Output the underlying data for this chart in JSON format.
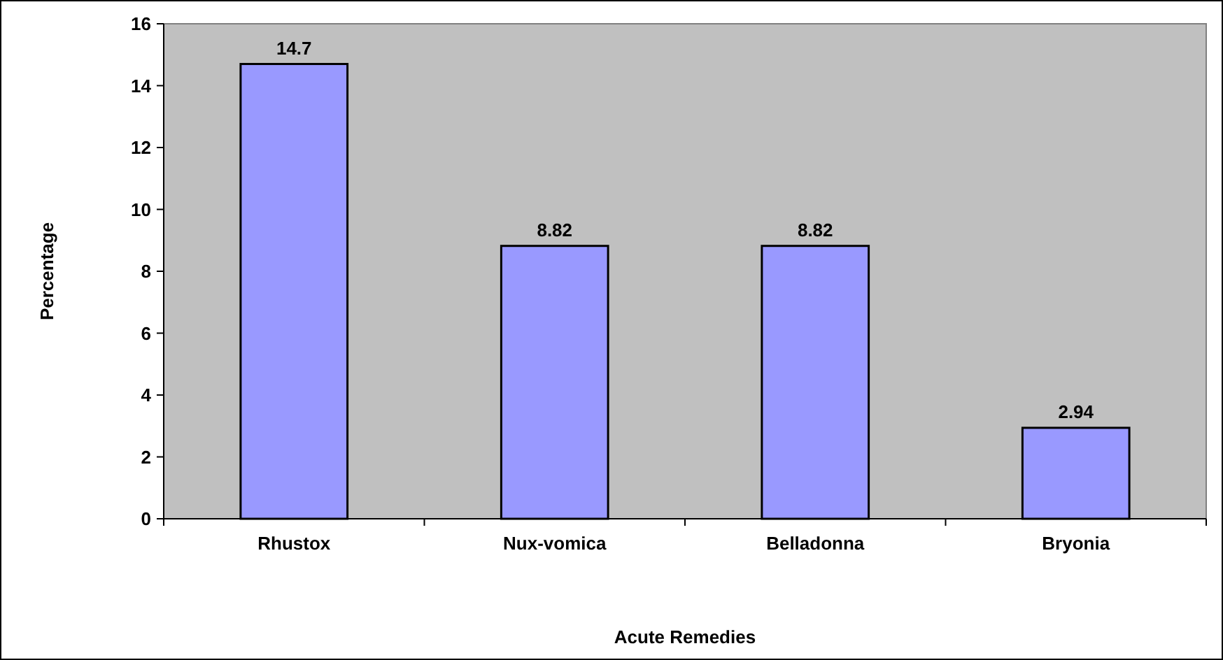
{
  "chart_data": {
    "type": "bar",
    "xlabel": "Acute Remedies",
    "ylabel": "Percentage",
    "categories": [
      "Rhustox",
      "Nux-vomica",
      "Belladonna",
      "Bryonia"
    ],
    "values": [
      14.7,
      8.82,
      8.82,
      2.94
    ],
    "color": "#9999ff",
    "ylim": [
      0,
      16
    ],
    "yticks": [
      0,
      2,
      4,
      6,
      8,
      10,
      12,
      14,
      16
    ],
    "grid": false,
    "data_labels": true
  }
}
